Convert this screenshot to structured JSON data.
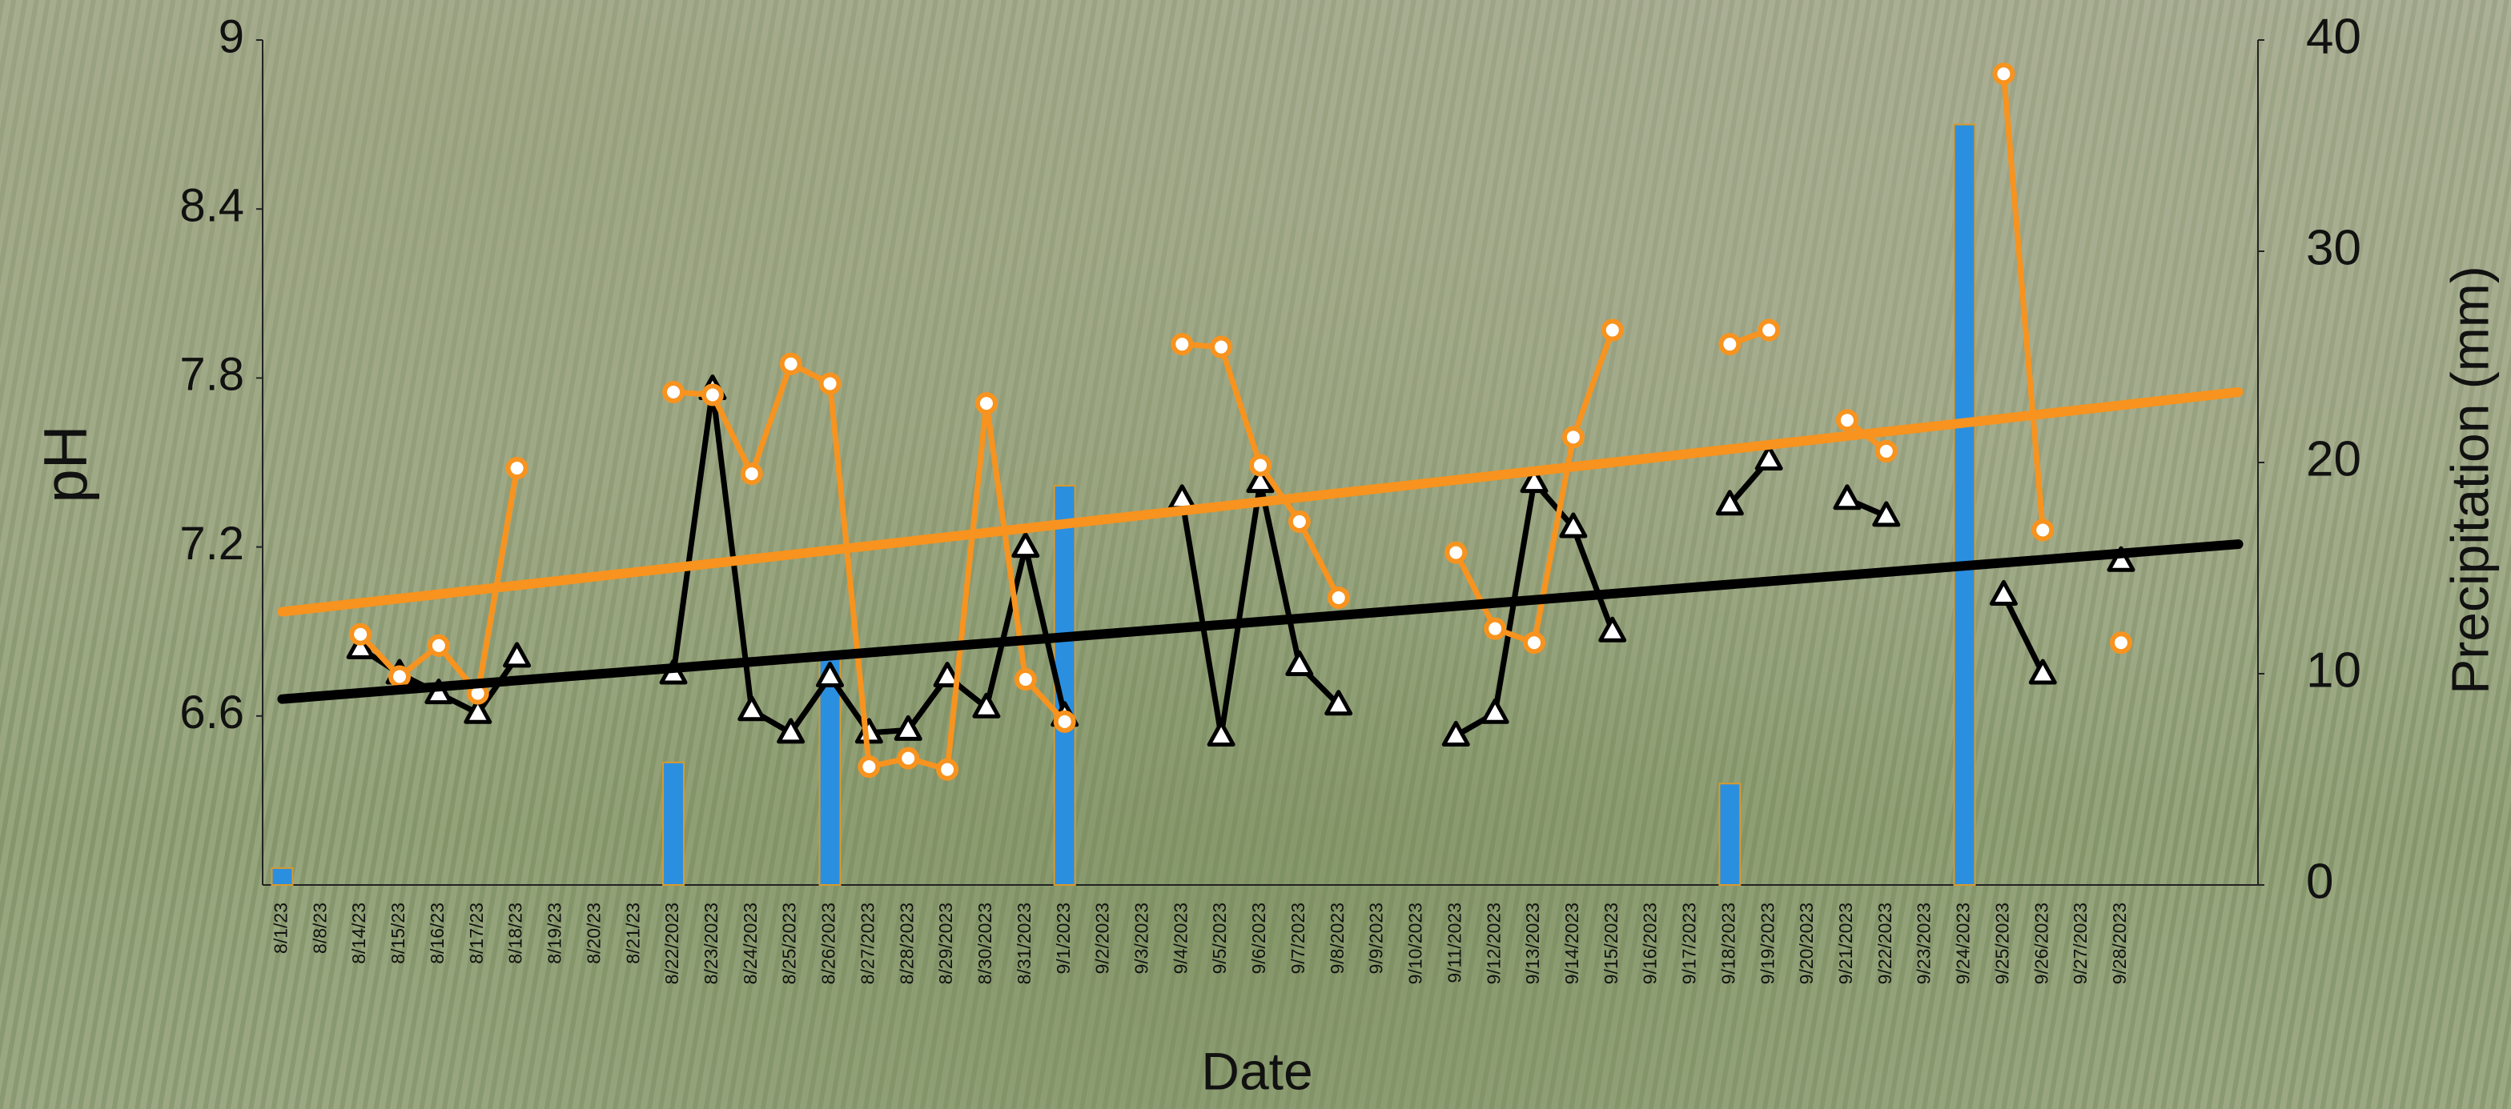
{
  "chart_data": {
    "type": "line",
    "x_label": "Date",
    "y_label": "pH",
    "y2_label": "Precipitation (mm)",
    "categories": [
      "8/1/23",
      "8/8/23",
      "8/14/23",
      "8/15/23",
      "8/16/23",
      "8/17/23",
      "8/18/23",
      "8/19/23",
      "8/20/23",
      "8/21/23",
      "8/22/2023",
      "8/23/2023",
      "8/24/2023",
      "8/25/2023",
      "8/26/2023",
      "8/27/2023",
      "8/28/2023",
      "8/29/2023",
      "8/30/2023",
      "8/31/2023",
      "9/1/2023",
      "9/2/2023",
      "9/3/2023",
      "9/4/2023",
      "9/5/2023",
      "9/6/2023",
      "9/7/2023",
      "9/8/2023",
      "9/9/2023",
      "9/10/2023",
      "9/11/2023",
      "9/12/2023",
      "9/13/2023",
      "9/14/2023",
      "9/15/2023",
      "9/16/2023",
      "9/17/2023",
      "9/18/2023",
      "9/19/2023",
      "9/20/2023",
      "9/21/2023",
      "9/22/2023",
      "9/23/2023",
      "9/24/2023",
      "9/25/2023",
      "9/26/2023",
      "9/27/2023",
      "9/28/2023",
      null,
      null,
      null
    ],
    "ylim": [
      6.0,
      9
    ],
    "yticks": [
      6.6,
      7.2,
      7.8,
      8.4,
      9
    ],
    "y2lim": [
      0,
      40
    ],
    "y2ticks": [
      0,
      10,
      20,
      30,
      40
    ],
    "grid": false,
    "series": [
      {
        "type": "bar",
        "axis": "y2",
        "color": "#2b8fe0",
        "values": [
          0.8,
          null,
          null,
          null,
          null,
          null,
          null,
          null,
          null,
          null,
          5.8,
          null,
          null,
          null,
          10.8,
          null,
          null,
          null,
          null,
          null,
          18.9,
          null,
          null,
          null,
          null,
          null,
          null,
          null,
          null,
          null,
          null,
          null,
          null,
          null,
          null,
          null,
          null,
          4.8,
          null,
          null,
          null,
          null,
          null,
          36,
          null,
          null,
          null,
          null,
          null,
          null,
          null
        ]
      },
      {
        "type": "line",
        "marker": "triangle",
        "color": "#000000",
        "values": [
          null,
          null,
          6.84,
          6.75,
          6.68,
          6.61,
          6.81,
          null,
          null,
          null,
          6.75,
          7.76,
          6.62,
          6.54,
          6.74,
          6.54,
          6.55,
          6.74,
          6.63,
          7.2,
          6.6,
          null,
          null,
          7.37,
          6.53,
          7.43,
          6.78,
          6.64,
          null,
          null,
          6.53,
          6.61,
          7.43,
          7.27,
          6.9,
          null,
          null,
          7.35,
          7.51,
          null,
          7.37,
          7.31,
          null,
          null,
          7.03,
          6.75,
          null,
          7.15,
          null,
          null,
          null
        ]
      },
      {
        "type": "line",
        "marker": "circle",
        "color": "#f7931e",
        "values": [
          null,
          null,
          6.89,
          6.74,
          6.85,
          6.68,
          7.48,
          null,
          null,
          null,
          7.75,
          7.74,
          7.46,
          7.85,
          7.78,
          6.42,
          6.45,
          6.41,
          7.71,
          6.73,
          6.58,
          null,
          null,
          7.92,
          7.91,
          7.49,
          7.29,
          7.02,
          null,
          null,
          7.18,
          6.91,
          6.86,
          7.59,
          7.97,
          null,
          null,
          7.92,
          7.97,
          null,
          7.65,
          7.54,
          null,
          null,
          8.88,
          7.26,
          null,
          6.86,
          null,
          null,
          null
        ]
      }
    ],
    "trendlines": [
      {
        "color": "#000000",
        "values": [
          6.66,
          7.21
        ]
      },
      {
        "color": "#f7931e",
        "values": [
          6.97,
          7.75
        ]
      }
    ]
  }
}
